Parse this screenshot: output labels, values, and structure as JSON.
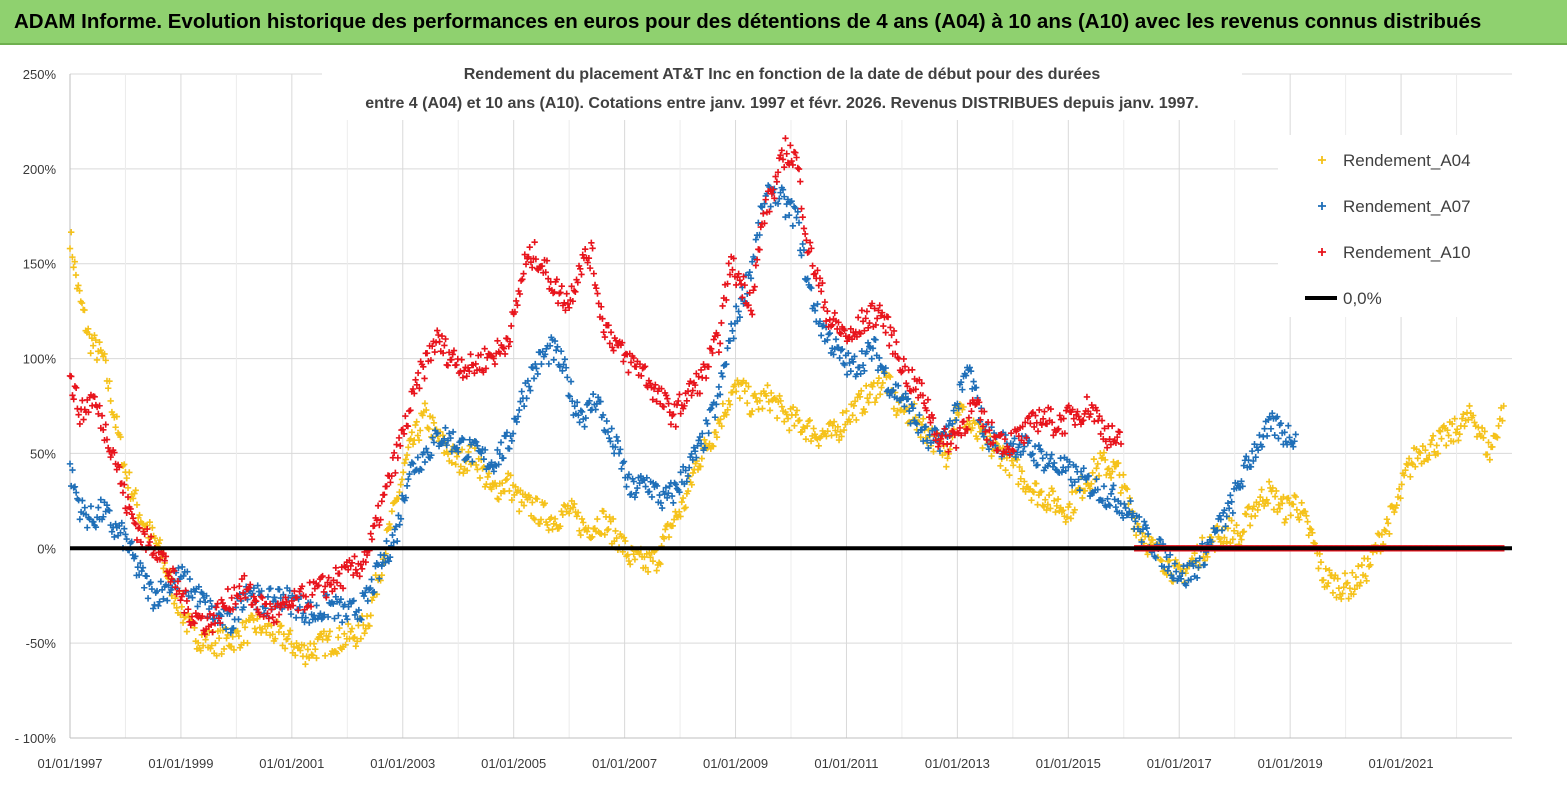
{
  "header": {
    "title": "ADAM Informe. Evolution historique des performances en euros pour des détentions de 4 ans (A04) à 10 ans (A10) avec les revenus connus distribués"
  },
  "colors": {
    "A04": "#f5c21b",
    "A07": "#1f6fb8",
    "A10": "#e8141c",
    "zero": "#000000",
    "header": "#8fd16f"
  },
  "chart_data": {
    "type": "scatter",
    "title_line1": "Rendement du placement AT&T Inc en fonction de la date de début pour des durées",
    "title_line2": "entre 4 (A04) et 10 ans (A10). Cotations entre janv. 1997 et févr. 2026. Revenus DISTRIBUES depuis janv. 1997.",
    "ylim": [
      -100,
      250
    ],
    "ytick_labels": [
      "250%",
      "200%",
      "150%",
      "100%",
      "50%",
      "0%",
      "-50%",
      "- 100%"
    ],
    "yticks": [
      250,
      200,
      150,
      100,
      50,
      0,
      -50,
      -100
    ],
    "xlim": [
      1997.0,
      2023.0
    ],
    "xtick_labels": [
      "01/01/1997",
      "01/01/1999",
      "01/01/2001",
      "01/01/2003",
      "01/01/2005",
      "01/01/2007",
      "01/01/2009",
      "01/01/2011",
      "01/01/2013",
      "01/01/2015",
      "01/01/2017",
      "01/01/2019",
      "01/01/2021"
    ],
    "xticks": [
      1997,
      1999,
      2001,
      2003,
      2005,
      2007,
      2009,
      2011,
      2013,
      2015,
      2017,
      2019,
      2021
    ],
    "grid": "vertical and horizontal",
    "legend_position": "top-right",
    "legend": [
      {
        "label": "Rendement_A04",
        "color": "#f5c21b",
        "marker": "+"
      },
      {
        "label": "Rendement_A07",
        "color": "#1f6fb8",
        "marker": "+"
      },
      {
        "label": "Rendement_A10",
        "color": "#e8141c",
        "marker": "+"
      },
      {
        "label": "0,0%",
        "color": "#000000",
        "marker": "line"
      }
    ],
    "zero_line": {
      "label": "0,0%",
      "value": 0
    },
    "series": [
      {
        "name": "Rendement_A04",
        "color": "#f5c21b",
        "x": [
          1997.0,
          1997.15,
          1997.35,
          1997.6,
          1997.8,
          1998.0,
          1998.3,
          1998.6,
          1998.9,
          1999.2,
          1999.6,
          2000.0,
          2000.4,
          2000.7,
          2000.9,
          2001.2,
          2001.6,
          2001.9,
          2002.2,
          2002.4,
          2002.6,
          2002.85,
          2003.1,
          2003.4,
          2003.7,
          2004.0,
          2004.3,
          2004.6,
          2004.9,
          2005.1,
          2005.4,
          2005.7,
          2006.0,
          2006.3,
          2006.6,
          2006.9,
          2007.1,
          2007.4,
          2007.6,
          2007.8,
          2008.1,
          2008.3,
          2008.6,
          2008.9,
          2009.1,
          2009.3,
          2009.6,
          2009.9,
          2010.2,
          2010.5,
          2010.8,
          2011.0,
          2011.2,
          2011.4,
          2011.7,
          2011.9,
          2012.2,
          2012.5,
          2012.8,
          2013.0,
          2013.2,
          2013.5,
          2013.8,
          2014.1,
          2014.4,
          2014.7,
          2015.0,
          2015.3,
          2015.6,
          2015.9,
          2016.2,
          2016.5,
          2016.8,
          2017.0,
          2017.3,
          2017.6,
          2017.9,
          2018.1,
          2018.3,
          2018.6,
          2018.9,
          2019.1,
          2019.4,
          2019.6,
          2019.9,
          2020.1,
          2020.4,
          2020.7,
          2020.9,
          2021.1,
          2021.3,
          2021.6,
          2021.9,
          2022.1,
          2022.3,
          2022.6,
          2022.85
        ],
        "y": [
          165,
          135,
          110,
          100,
          70,
          40,
          15,
          0,
          -25,
          -45,
          -50,
          -47,
          -40,
          -45,
          -48,
          -55,
          -50,
          -48,
          -45,
          -35,
          -10,
          20,
          50,
          70,
          55,
          45,
          50,
          30,
          35,
          25,
          20,
          15,
          20,
          10,
          15,
          5,
          -5,
          -8,
          -5,
          10,
          25,
          45,
          60,
          80,
          85,
          75,
          80,
          70,
          65,
          60,
          60,
          70,
          75,
          80,
          90,
          75,
          70,
          60,
          50,
          75,
          65,
          55,
          50,
          40,
          30,
          25,
          20,
          35,
          45,
          40,
          15,
          0,
          -8,
          -15,
          -5,
          5,
          10,
          5,
          20,
          30,
          20,
          25,
          5,
          -15,
          -20,
          -20,
          -10,
          10,
          20,
          40,
          50,
          55,
          60,
          65,
          70,
          50,
          75
        ]
      },
      {
        "name": "Rendement_A07",
        "color": "#1f6fb8",
        "x": [
          1997.0,
          1997.2,
          1997.4,
          1997.6,
          1997.8,
          1998.0,
          1998.2,
          1998.5,
          1998.8,
          1999.0,
          1999.3,
          1999.6,
          1999.9,
          2000.2,
          2000.5,
          2000.8,
          2001.1,
          2001.4,
          2001.7,
          2002.0,
          2002.3,
          2002.6,
          2002.9,
          2003.1,
          2003.4,
          2003.7,
          2004.0,
          2004.3,
          2004.6,
          2004.9,
          2005.1,
          2005.3,
          2005.5,
          2005.7,
          2005.9,
          2006.1,
          2006.3,
          2006.5,
          2006.7,
          2006.9,
          2007.1,
          2007.4,
          2007.7,
          2007.9,
          2008.1,
          2008.4,
          2008.7,
          2008.9,
          2009.1,
          2009.3,
          2009.5,
          2009.7,
          2009.9,
          2010.1,
          2010.3,
          2010.5,
          2010.7,
          2010.9,
          2011.1,
          2011.3,
          2011.5,
          2011.8,
          2012.0,
          2012.2,
          2012.5,
          2012.8,
          2013.0,
          2013.2,
          2013.5,
          2013.8,
          2014.1,
          2014.4,
          2014.7,
          2015.0,
          2015.3,
          2015.6,
          2015.9,
          2016.1,
          2016.3,
          2016.6,
          2016.9,
          2017.1,
          2017.3,
          2017.6,
          2017.9,
          2018.1,
          2018.4,
          2018.7,
          2018.9,
          2019.1
        ],
        "y": [
          40,
          20,
          15,
          20,
          10,
          5,
          -10,
          -25,
          -20,
          -15,
          -25,
          -35,
          -40,
          -20,
          -30,
          -25,
          -30,
          -35,
          -30,
          -35,
          -30,
          -10,
          10,
          40,
          50,
          60,
          55,
          50,
          45,
          55,
          75,
          90,
          100,
          105,
          95,
          75,
          70,
          80,
          60,
          50,
          30,
          35,
          25,
          30,
          40,
          55,
          80,
          110,
          130,
          150,
          180,
          190,
          180,
          175,
          140,
          120,
          110,
          100,
          95,
          100,
          105,
          85,
          80,
          70,
          55,
          60,
          75,
          95,
          60,
          55,
          55,
          50,
          45,
          40,
          35,
          30,
          25,
          20,
          10,
          0,
          -10,
          -15,
          -10,
          5,
          20,
          35,
          55,
          65,
          60,
          60
        ]
      },
      {
        "name": "Rendement_A10",
        "color": "#e8141c",
        "x": [
          1997.0,
          1997.2,
          1997.4,
          1997.6,
          1997.8,
          1998.0,
          1998.3,
          1998.6,
          1998.9,
          1999.2,
          1999.5,
          1999.8,
          2000.1,
          2000.4,
          2000.7,
          2001.0,
          2001.3,
          2001.6,
          2001.9,
          2002.2,
          2002.4,
          2002.6,
          2002.8,
          2003.0,
          2003.3,
          2003.6,
          2003.9,
          2004.2,
          2004.5,
          2004.8,
          2005.0,
          2005.2,
          2005.4,
          2005.6,
          2005.8,
          2006.0,
          2006.2,
          2006.4,
          2006.6,
          2006.8,
          2007.0,
          2007.3,
          2007.6,
          2007.9,
          2008.1,
          2008.4,
          2008.7,
          2008.9,
          2009.1,
          2009.3,
          2009.5,
          2009.7,
          2009.9,
          2010.1,
          2010.3,
          2010.5,
          2010.7,
          2010.9,
          2011.1,
          2011.3,
          2011.6,
          2011.9,
          2012.1,
          2012.4,
          2012.7,
          2013.0,
          2013.3,
          2013.6,
          2013.9,
          2014.2,
          2014.5,
          2014.8,
          2015.1,
          2015.4,
          2015.7,
          2015.95
        ],
        "y": [
          90,
          70,
          80,
          65,
          50,
          25,
          5,
          0,
          -20,
          -35,
          -40,
          -30,
          -20,
          -30,
          -35,
          -30,
          -25,
          -20,
          -15,
          -10,
          0,
          20,
          40,
          60,
          90,
          110,
          100,
          95,
          100,
          105,
          120,
          150,
          155,
          145,
          135,
          130,
          150,
          155,
          120,
          110,
          100,
          95,
          80,
          70,
          80,
          90,
          110,
          150,
          140,
          130,
          175,
          190,
          210,
          205,
          160,
          140,
          120,
          115,
          110,
          120,
          125,
          105,
          90,
          80,
          55,
          60,
          75,
          60,
          55,
          60,
          70,
          65,
          70,
          75,
          60,
          55
        ]
      },
      {
        "name": "Rendement_A10",
        "color": "#e8141c",
        "segment": "flat",
        "x": [
          2016.2,
          2022.85
        ],
        "y": [
          0,
          0
        ]
      }
    ]
  }
}
